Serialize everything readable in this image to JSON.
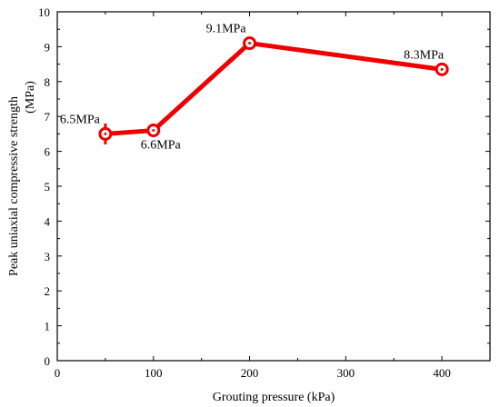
{
  "chart_data": {
    "type": "line",
    "xlabel": "Grouting pressure (kPa)",
    "ylabel_line1": "Peak uniaxial  compressive strength",
    "ylabel_line2": "(MPa)",
    "xlim": [
      0,
      450
    ],
    "ylim": [
      0,
      10
    ],
    "xticks": [
      0,
      100,
      200,
      300,
      400
    ],
    "yticks": [
      0,
      1,
      2,
      3,
      4,
      5,
      6,
      7,
      8,
      9,
      10
    ],
    "grid": false,
    "line_color": "#ee0000",
    "series": [
      {
        "x": [
          50,
          100,
          200,
          400
        ],
        "y": [
          6.5,
          6.6,
          9.1,
          8.35
        ],
        "labels": [
          "6.5MPa",
          "6.6MPa",
          "9.1MPa",
          "8.3MPa"
        ]
      }
    ]
  }
}
